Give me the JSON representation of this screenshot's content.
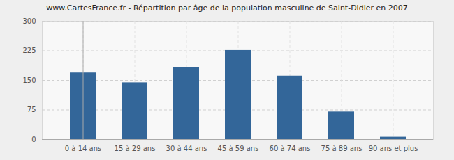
{
  "chart_data": {
    "type": "bar",
    "title": "www.CartesFrance.fr - Répartition par âge de la population masculine de Saint-Didier en 2007",
    "categories": [
      "0 à 14 ans",
      "15 à 29 ans",
      "30 à 44 ans",
      "45 à 59 ans",
      "60 à 74 ans",
      "75 à 89 ans",
      "90 ans et plus"
    ],
    "values": [
      169,
      144,
      182,
      226,
      161,
      70,
      6
    ],
    "color": "#336699",
    "ylim": [
      0,
      300
    ],
    "yticks": [
      0,
      75,
      150,
      225,
      300
    ],
    "grid": true
  }
}
